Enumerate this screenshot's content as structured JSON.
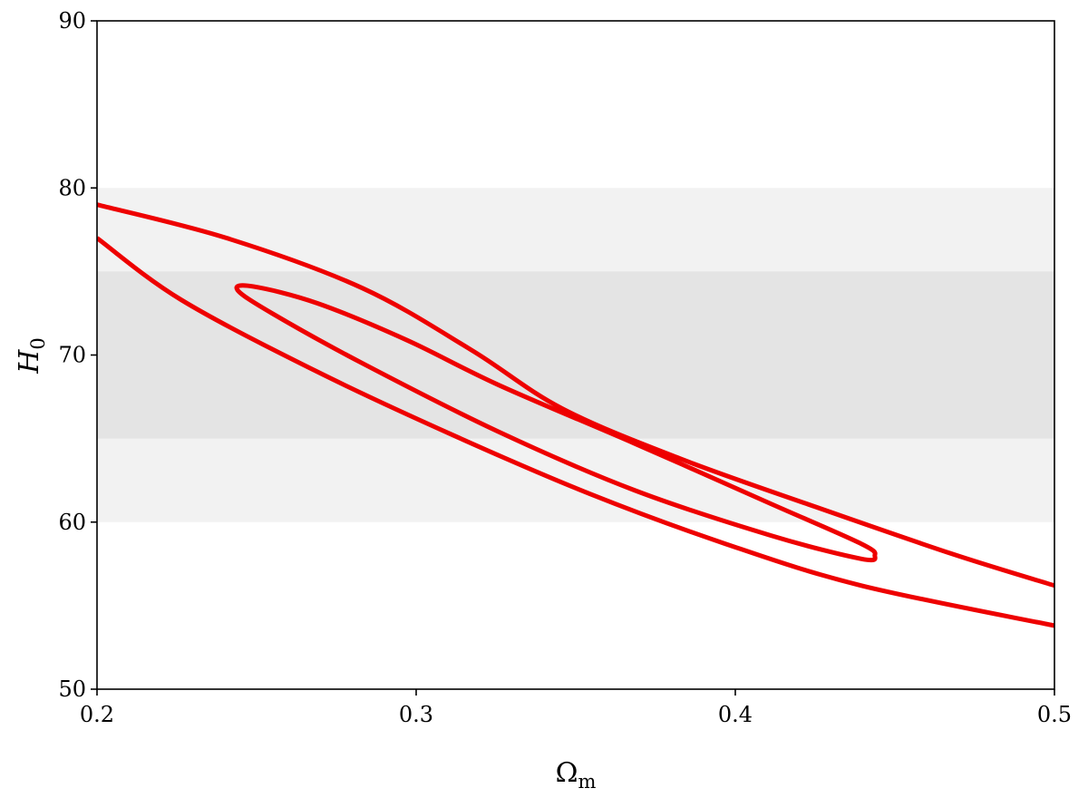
{
  "chart_data": {
    "type": "contour",
    "xlabel": [
      "Ω",
      "m"
    ],
    "ylabel": [
      "H",
      "0"
    ],
    "xlim": [
      0.2,
      0.5
    ],
    "ylim": [
      50,
      90
    ],
    "xticks": [
      0.2,
      0.3,
      0.4,
      0.5
    ],
    "yticks": [
      50,
      60,
      70,
      80,
      90
    ],
    "bands": [
      {
        "y": [
          60,
          80
        ],
        "color": "#f2f2f2"
      },
      {
        "y": [
          65,
          75
        ],
        "color": "#e4e4e4"
      }
    ],
    "series": [
      {
        "color": "#ee0000",
        "closed": false,
        "x": [
          0.2,
          0.2406,
          0.2832,
          0.3173,
          0.3457,
          0.3827,
          0.4253,
          0.4679,
          0.5,
          null,
          0.2,
          0.2264,
          0.269,
          0.3116,
          0.3543,
          0.3969,
          0.4395,
          0.5
        ],
        "y": [
          79.0,
          77.0,
          74.0,
          70.3,
          66.8,
          63.8,
          60.9,
          58.1,
          56.2,
          null,
          77.0,
          73.3,
          69.0,
          65.2,
          61.7,
          58.7,
          56.2,
          53.8
        ]
      },
      {
        "color": "#ee0000",
        "closed": true,
        "x": [
          0.244,
          0.249,
          0.269,
          0.297,
          0.3259,
          0.3685,
          0.4111,
          0.4395,
          0.4437,
          0.4395,
          0.4111,
          0.3685,
          0.3259,
          0.2832,
          0.2548
        ],
        "y": [
          73.9,
          74.1,
          73.1,
          70.9,
          68.2,
          64.7,
          61.1,
          58.7,
          58.0,
          57.8,
          59.2,
          61.9,
          65.4,
          69.5,
          72.5
        ]
      }
    ]
  }
}
